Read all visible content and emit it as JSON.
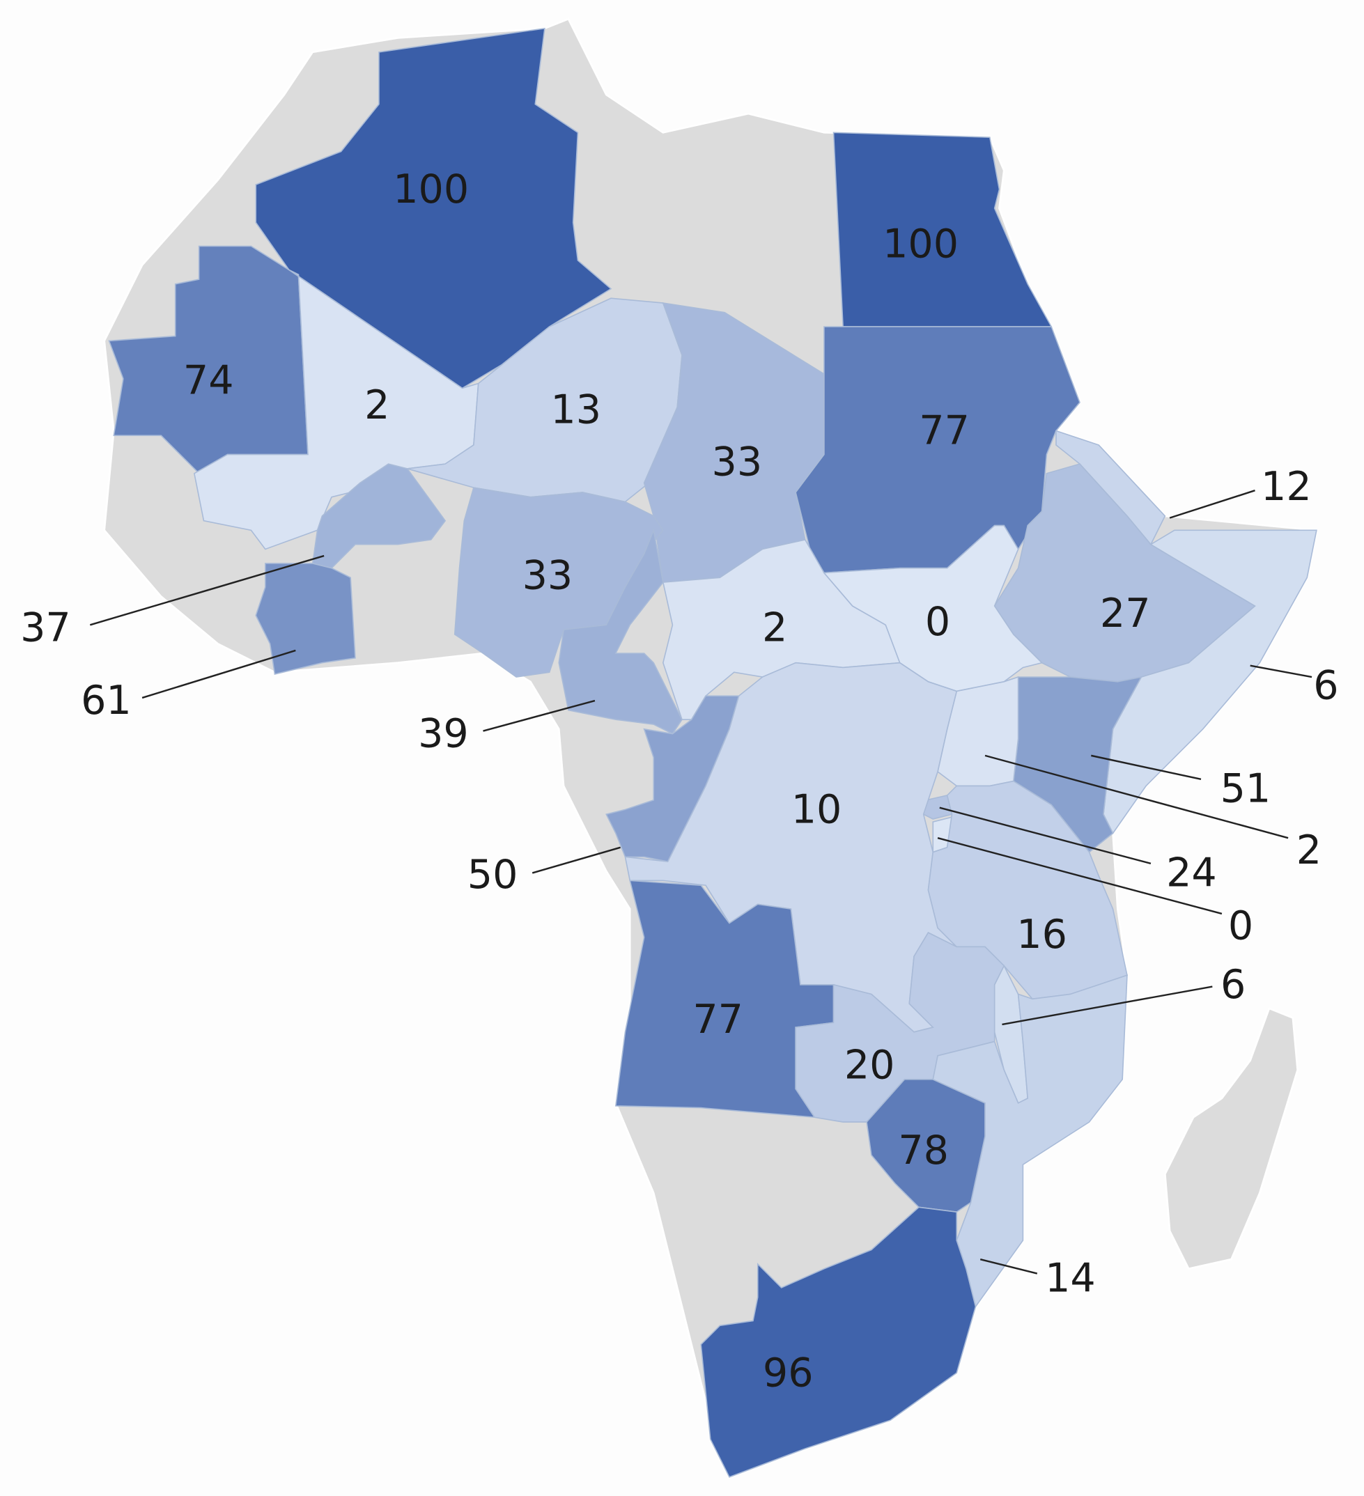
{
  "values": [
    100,
    100,
    74,
    2,
    13,
    33,
    77,
    12,
    27,
    6,
    37,
    61,
    33,
    39,
    2,
    0,
    51,
    2,
    24,
    0,
    50,
    10,
    16,
    6,
    77,
    20,
    78,
    14,
    96
  ],
  "color_range": [
    "#dce6f5",
    "#3a5ea8"
  ]
}
